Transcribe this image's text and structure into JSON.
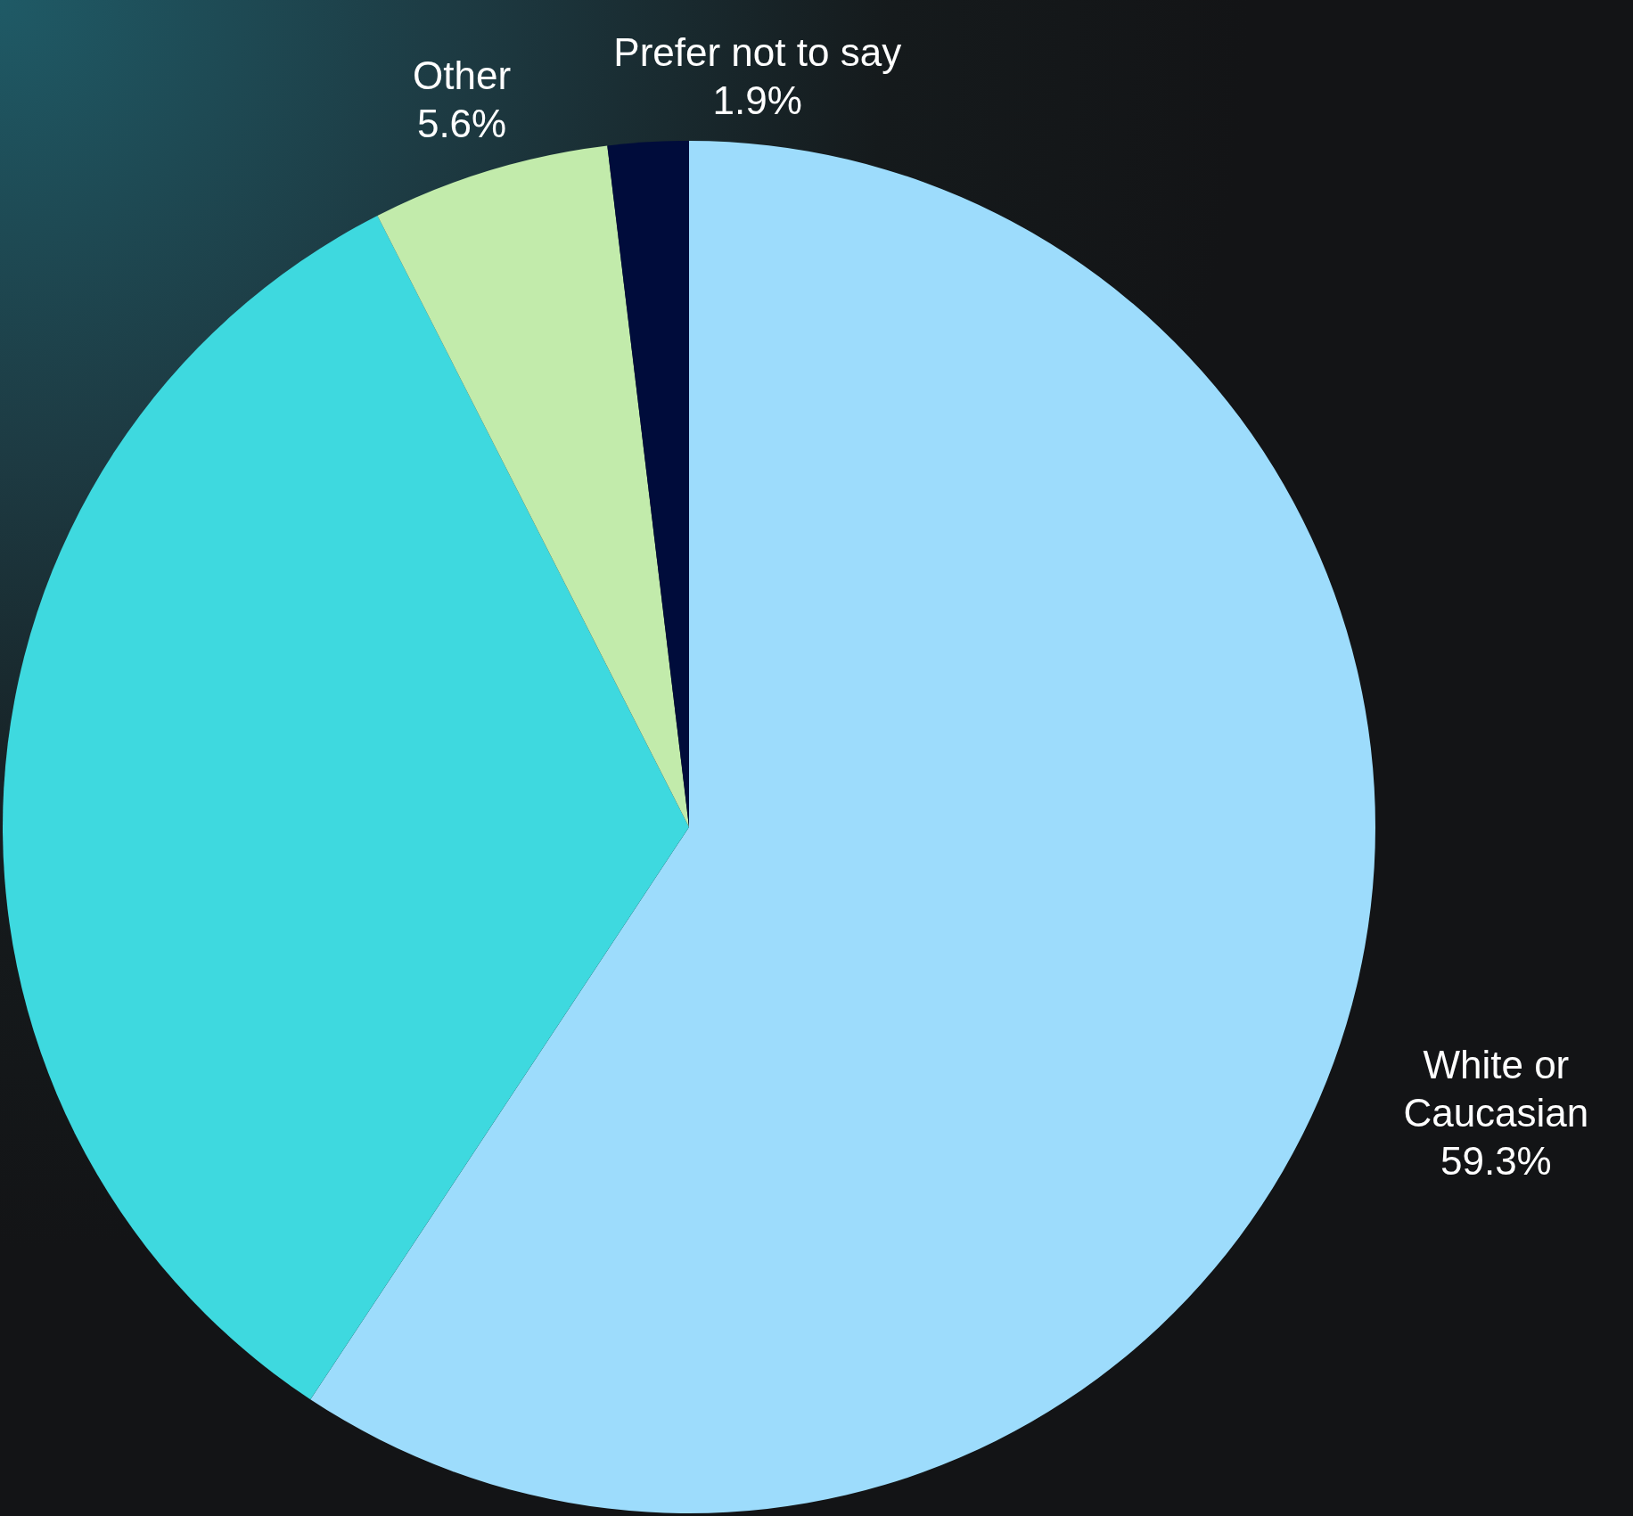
{
  "chart_data": {
    "type": "pie",
    "categories": [
      "White or Caucasian",
      null,
      "Other",
      "Prefer not to say"
    ],
    "values": [
      59.3,
      33.2,
      5.6,
      1.9
    ],
    "colors": [
      "#9ddcfc",
      "#3ed9df",
      "#c2ebab",
      "#000c3b"
    ],
    "value_labels": [
      "59.3%",
      null,
      "5.6%",
      "1.9%"
    ]
  }
}
